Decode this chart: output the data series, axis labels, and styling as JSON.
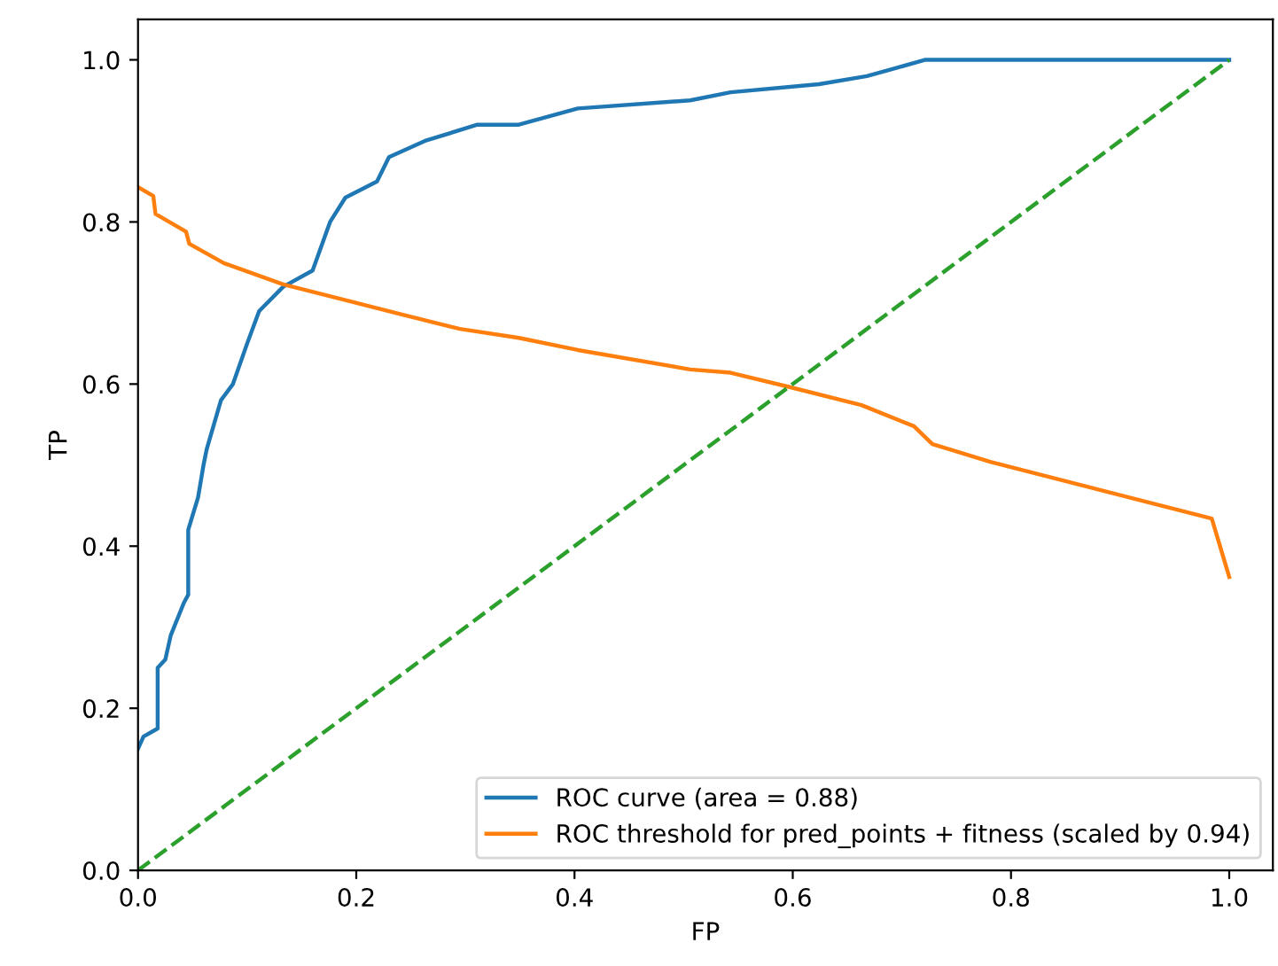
{
  "chart_data": {
    "type": "line",
    "xlabel": "FP",
    "ylabel": "TP",
    "xlim": [
      0,
      1.04
    ],
    "ylim": [
      0,
      1.05
    ],
    "xticks": [
      {
        "value": 0,
        "label": "0.0"
      },
      {
        "value": 0.2,
        "label": "0.2"
      },
      {
        "value": 0.4,
        "label": "0.4"
      },
      {
        "value": 0.6,
        "label": "0.6"
      },
      {
        "value": 0.8,
        "label": "0.8"
      },
      {
        "value": 1,
        "label": "1.0"
      }
    ],
    "yticks": [
      {
        "value": 0,
        "label": "0.0"
      },
      {
        "value": 0.2,
        "label": "0.2"
      },
      {
        "value": 0.4,
        "label": "0.4"
      },
      {
        "value": 0.6,
        "label": "0.6"
      },
      {
        "value": 0.8,
        "label": "0.8"
      },
      {
        "value": 1,
        "label": "1.0"
      }
    ],
    "legend": "bottom right",
    "grid": false,
    "marker": "none",
    "series": [
      {
        "name": "ROC curve (area = 0.88)",
        "color": "#1f77b4",
        "line_style": "solid",
        "x": [
          0,
          0.005,
          0.018,
          0.018,
          0.025,
          0.03,
          0.042,
          0.046,
          0.046,
          0.055,
          0.06,
          0.063,
          0.076,
          0.087,
          0.1,
          0.111,
          0.133,
          0.16,
          0.176,
          0.19,
          0.219,
          0.23,
          0.263,
          0.311,
          0.349,
          0.403,
          0.506,
          0.543,
          0.624,
          0.668,
          0.695,
          0.721,
          1.0
        ],
        "values": [
          0.15,
          0.165,
          0.175,
          0.25,
          0.26,
          0.29,
          0.33,
          0.34,
          0.42,
          0.46,
          0.5,
          0.52,
          0.58,
          0.6,
          0.65,
          0.69,
          0.72,
          0.74,
          0.8,
          0.83,
          0.85,
          0.88,
          0.9,
          0.92,
          0.92,
          0.94,
          0.95,
          0.96,
          0.97,
          0.98,
          0.99,
          1.0,
          1.0
        ]
      },
      {
        "name": "ROC threshold for pred_points + fitness (scaled by 0.94)",
        "color": "#ff7f0e",
        "line_style": "solid",
        "x": [
          0,
          0.014,
          0.016,
          0.044,
          0.047,
          0.079,
          0.133,
          0.186,
          0.241,
          0.295,
          0.349,
          0.403,
          0.506,
          0.543,
          0.598,
          0.663,
          0.711,
          0.728,
          0.781,
          0.984,
          1.0
        ],
        "values": [
          0.843,
          0.832,
          0.81,
          0.788,
          0.773,
          0.749,
          0.723,
          0.705,
          0.686,
          0.668,
          0.657,
          0.642,
          0.618,
          0.614,
          0.596,
          0.574,
          0.548,
          0.526,
          0.504,
          0.434,
          0.362
        ]
      },
      {
        "color": "#2ca02c",
        "line_style": "dashed",
        "x": [
          0,
          1
        ],
        "values": [
          0,
          1
        ]
      }
    ]
  }
}
